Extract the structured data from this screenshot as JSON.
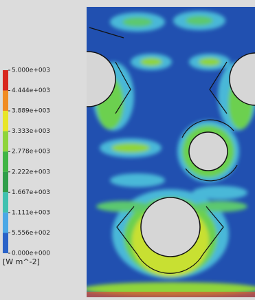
{
  "legend": {
    "labels": [
      "5.000e+003",
      "4.444e+003",
      "3.889e+003",
      "3.333e+003",
      "2.778e+003",
      "2.222e+003",
      "1.667e+003",
      "1.111e+003",
      "5.556e+002",
      "0.000e+000"
    ],
    "colors": [
      "#d8261e",
      "#f08c22",
      "#e8e628",
      "#8fd43a",
      "#3fb544",
      "#2f9e4a",
      "#3fc1b0",
      "#4aa8e6",
      "#2a62c8",
      "#1c3c9a"
    ],
    "unit": "[W m^-2]"
  }
}
